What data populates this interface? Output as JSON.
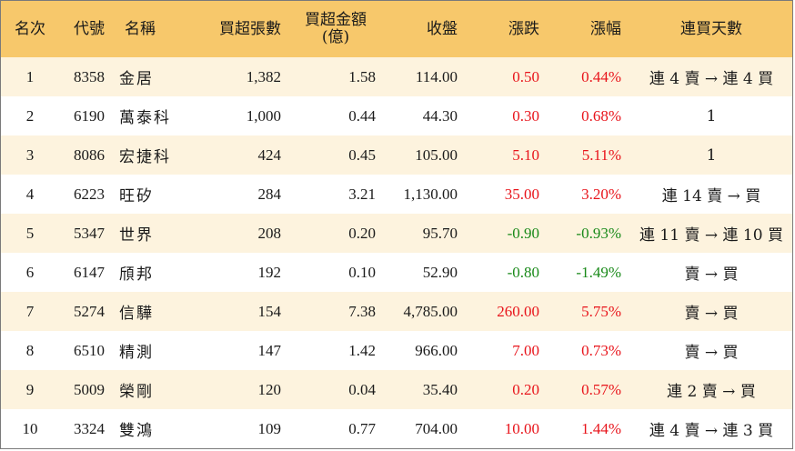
{
  "headers": {
    "rank": "名次",
    "code": "代號",
    "name": "名稱",
    "net_buy_lots": "買超張數",
    "net_buy_amount_line1": "買超金額",
    "net_buy_amount_line2": "(億)",
    "close": "收盤",
    "change": "漲跌",
    "change_pct": "漲幅",
    "consecutive_days": "連買天數"
  },
  "rows": [
    {
      "rank": "1",
      "code": "8358",
      "name": "金居",
      "lots": "1,382",
      "amount": "1.58",
      "close": "114.00",
      "change": "0.50",
      "pct": "0.44%",
      "days": "連 4 賣 → 連 4 買",
      "dir": "pos"
    },
    {
      "rank": "2",
      "code": "6190",
      "name": "萬泰科",
      "lots": "1,000",
      "amount": "0.44",
      "close": "44.30",
      "change": "0.30",
      "pct": "0.68%",
      "days": "1",
      "dir": "pos"
    },
    {
      "rank": "3",
      "code": "8086",
      "name": "宏捷科",
      "lots": "424",
      "amount": "0.45",
      "close": "105.00",
      "change": "5.10",
      "pct": "5.11%",
      "days": "1",
      "dir": "pos"
    },
    {
      "rank": "4",
      "code": "6223",
      "name": "旺矽",
      "lots": "284",
      "amount": "3.21",
      "close": "1,130.00",
      "change": "35.00",
      "pct": "3.20%",
      "days": "連 14 賣 → 買",
      "dir": "pos"
    },
    {
      "rank": "5",
      "code": "5347",
      "name": "世界",
      "lots": "208",
      "amount": "0.20",
      "close": "95.70",
      "change": "-0.90",
      "pct": "-0.93%",
      "days": "連 11 賣 → 連 10 買",
      "dir": "neg"
    },
    {
      "rank": "6",
      "code": "6147",
      "name": "頎邦",
      "lots": "192",
      "amount": "0.10",
      "close": "52.90",
      "change": "-0.80",
      "pct": "-1.49%",
      "days": "賣 → 買",
      "dir": "neg"
    },
    {
      "rank": "7",
      "code": "5274",
      "name": "信驊",
      "lots": "154",
      "amount": "7.38",
      "close": "4,785.00",
      "change": "260.00",
      "pct": "5.75%",
      "days": "賣 → 買",
      "dir": "pos"
    },
    {
      "rank": "8",
      "code": "6510",
      "name": "精測",
      "lots": "147",
      "amount": "1.42",
      "close": "966.00",
      "change": "7.00",
      "pct": "0.73%",
      "days": "賣 → 買",
      "dir": "pos"
    },
    {
      "rank": "9",
      "code": "5009",
      "name": "榮剛",
      "lots": "120",
      "amount": "0.04",
      "close": "35.40",
      "change": "0.20",
      "pct": "0.57%",
      "days": "連 2 賣 → 買",
      "dir": "pos"
    },
    {
      "rank": "10",
      "code": "3324",
      "name": "雙鴻",
      "lots": "109",
      "amount": "0.77",
      "close": "704.00",
      "change": "10.00",
      "pct": "1.44%",
      "days": "連 4 賣 → 連 3 買",
      "dir": "pos"
    }
  ],
  "colors": {
    "header_bg": "#f7c86b",
    "row_alt_bg": "#fdf3de",
    "up": "#e8141b",
    "down": "#1a8a1a"
  }
}
